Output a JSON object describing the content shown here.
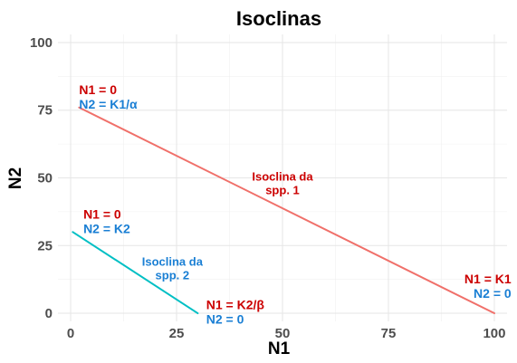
{
  "chart_data": {
    "type": "line",
    "title": "Isoclinas",
    "xlabel": "N1",
    "ylabel": "N2",
    "xlim": [
      -3,
      103
    ],
    "ylim": [
      -3,
      103
    ],
    "x_ticks": [
      0,
      25,
      50,
      75,
      100
    ],
    "y_ticks": [
      0,
      25,
      50,
      75,
      100
    ],
    "x_tick_labels": [
      "0",
      "25",
      "50",
      "75",
      "100"
    ],
    "y_tick_labels": [
      "0",
      "25",
      "50",
      "75",
      "100"
    ],
    "grid": true,
    "legend": "none",
    "series": [
      {
        "color": "#f0706a",
        "x": [
          2,
          100
        ],
        "y": [
          76,
          0
        ]
      },
      {
        "color": "#00bfc4",
        "x": [
          0.5,
          30
        ],
        "y": [
          30,
          0
        ]
      }
    ],
    "annotations": [
      {
        "lines": [
          "N1 = 0",
          "N2 = K1/α"
        ],
        "colors": [
          "#cc0000",
          "#1a7fd4"
        ],
        "x": 2,
        "y": 81,
        "align": "start",
        "size": 14
      },
      {
        "lines": [
          "Isoclina da",
          "spp. 1"
        ],
        "colors": [
          "#cc0000",
          "#cc0000"
        ],
        "x": 50,
        "y": 49,
        "align": "middle",
        "size": 13
      },
      {
        "lines": [
          "N1 = 0",
          "N2 = K2"
        ],
        "colors": [
          "#cc0000",
          "#1a7fd4"
        ],
        "x": 3,
        "y": 35,
        "align": "start",
        "size": 14
      },
      {
        "lines": [
          "Isoclina da",
          "spp. 2"
        ],
        "colors": [
          "#1a7fd4",
          "#1a7fd4"
        ],
        "x": 24,
        "y": 17.5,
        "align": "middle",
        "size": 13
      },
      {
        "lines": [
          "N1 = K2/β",
          "N2 = 0"
        ],
        "colors": [
          "#cc0000",
          "#1a7fd4"
        ],
        "x": 32,
        "y": 1.5,
        "align": "start",
        "size": 14
      },
      {
        "lines": [
          "N1 = K1",
          "N2 = 0"
        ],
        "colors": [
          "#cc0000",
          "#1a7fd4"
        ],
        "x": 104,
        "y": 11,
        "align": "end",
        "size": 14
      }
    ]
  }
}
